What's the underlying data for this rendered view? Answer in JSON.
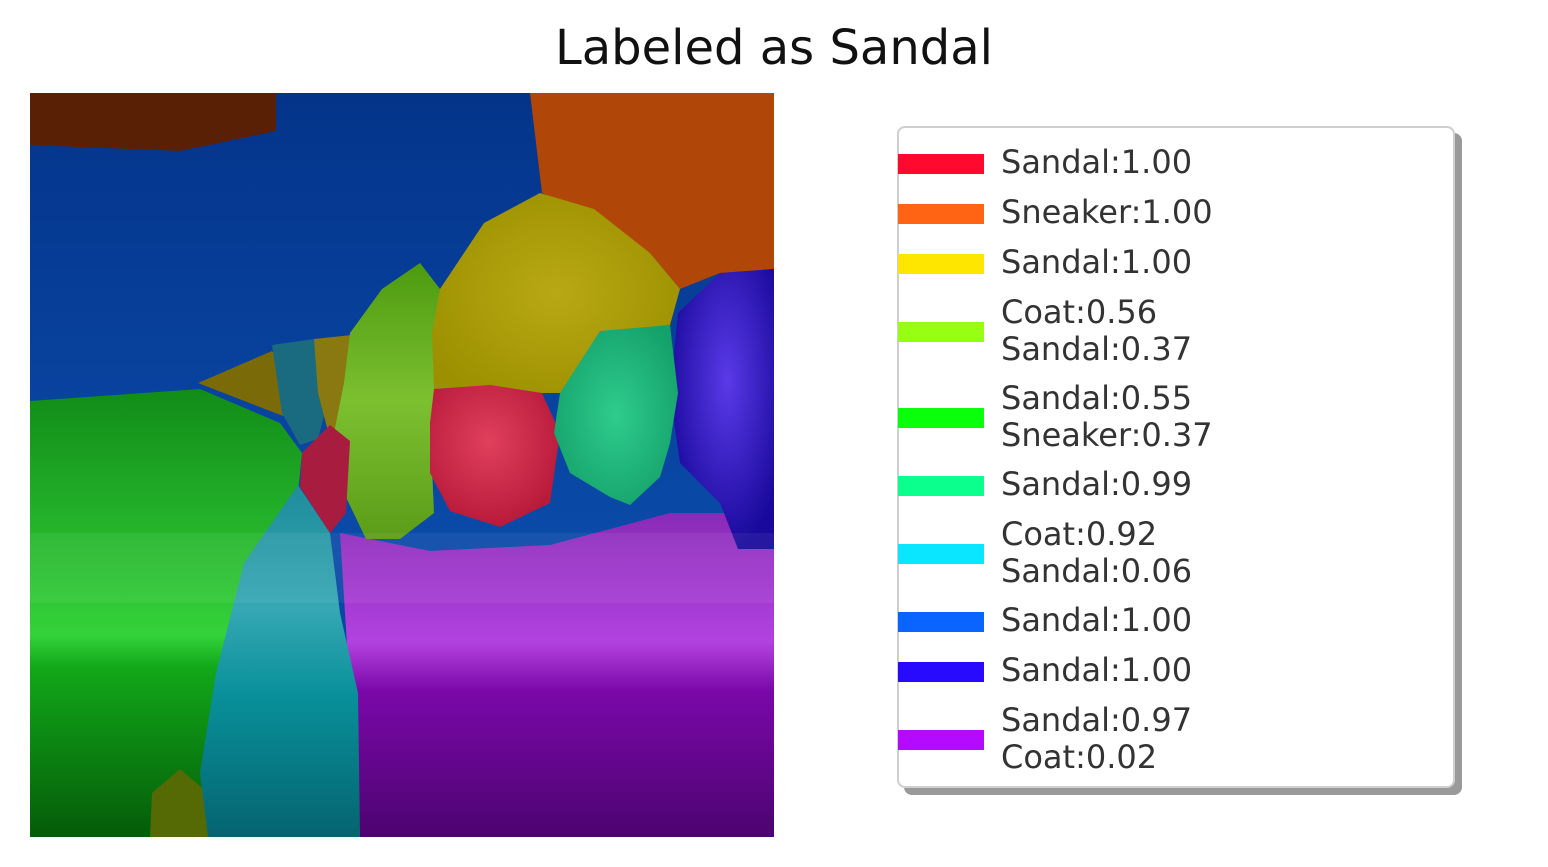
{
  "title": "Labeled as Sandal",
  "legend": {
    "items": [
      {
        "color": "#ff0a2e",
        "lines": [
          "Sandal:1.00"
        ]
      },
      {
        "color": "#ff6414",
        "lines": [
          "Sneaker:1.00"
        ]
      },
      {
        "color": "#ffe600",
        "lines": [
          "Sandal:1.00"
        ]
      },
      {
        "color": "#96ff14",
        "lines": [
          "Coat:0.56",
          "Sandal:0.37"
        ]
      },
      {
        "color": "#0aff0a",
        "lines": [
          "Sandal:0.55",
          "Sneaker:0.37"
        ]
      },
      {
        "color": "#0aff8c",
        "lines": [
          "Sandal:0.99"
        ]
      },
      {
        "color": "#0ae6ff",
        "lines": [
          "Coat:0.92",
          "Sandal:0.06"
        ]
      },
      {
        "color": "#0a64ff",
        "lines": [
          "Sandal:1.00"
        ]
      },
      {
        "color": "#280aff",
        "lines": [
          "Sandal:1.00"
        ]
      },
      {
        "color": "#b40aff",
        "lines": [
          "Sandal:0.97",
          "Coat:0.02"
        ]
      }
    ]
  }
}
